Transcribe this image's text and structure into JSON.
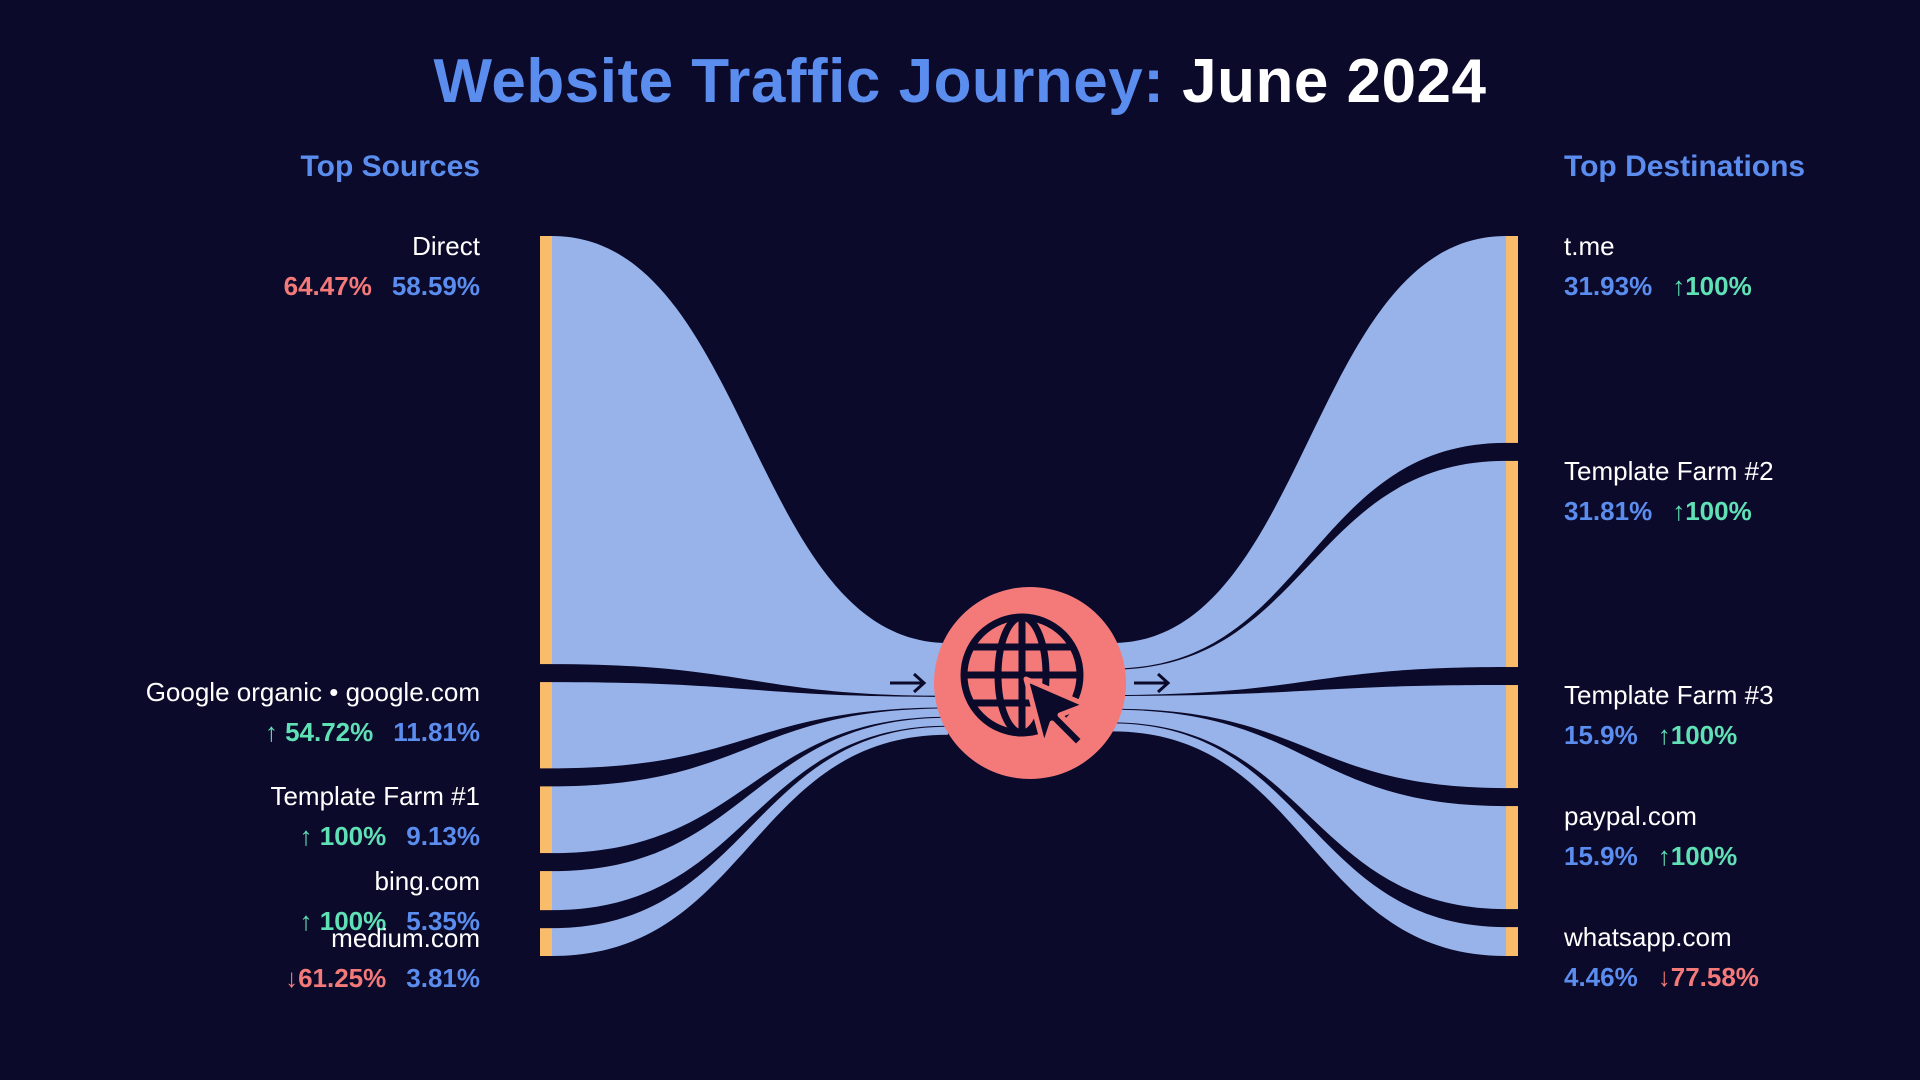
{
  "title": {
    "accent": "Website Traffic Journey:",
    "plain": "June 2024"
  },
  "sources_heading": "Top Sources",
  "destinations_heading": "Top Destinations",
  "colors": {
    "background": "#0b0a2b",
    "flow": "#98b3ea",
    "node_bar": "#f9bc6a",
    "hub": "#f47a7a",
    "accent_blue": "#5b8def",
    "up_green": "#5fe0b5",
    "down_red": "#f47a7a"
  },
  "hub_icon": "globe-cursor-icon",
  "chart_data": {
    "type": "sankey",
    "sources": [
      {
        "name": "Direct",
        "change": "64.47%",
        "change_dir": "plain",
        "share": "58.59%",
        "value": 58.59
      },
      {
        "name": "Google organic • google.com",
        "change": "↑ 54.72%",
        "change_dir": "up",
        "share": "11.81%",
        "value": 11.81
      },
      {
        "name": "Template Farm #1",
        "change": "↑ 100%",
        "change_dir": "up",
        "share": "9.13%",
        "value": 9.13
      },
      {
        "name": "bing.com",
        "change": "↑ 100%",
        "change_dir": "up",
        "share": "5.35%",
        "value": 5.35
      },
      {
        "name": "medium.com",
        "change": "↓61.25%",
        "change_dir": "down",
        "share": "3.81%",
        "value": 3.81
      }
    ],
    "destinations": [
      {
        "name": "t.me",
        "share": "31.93%",
        "change": "↑100%",
        "change_dir": "up",
        "value": 31.93
      },
      {
        "name": "Template Farm #2",
        "share": "31.81%",
        "change": "↑100%",
        "change_dir": "up",
        "value": 31.81
      },
      {
        "name": "Template Farm #3",
        "share": "15.9%",
        "change": "↑100%",
        "change_dir": "up",
        "value": 15.9
      },
      {
        "name": "paypal.com",
        "share": "15.9%",
        "change": "↑100%",
        "change_dir": "up",
        "value": 15.9
      },
      {
        "name": "whatsapp.com",
        "share": "4.46%",
        "change": "↓77.58%",
        "change_dir": "down",
        "value": 4.46
      }
    ]
  }
}
